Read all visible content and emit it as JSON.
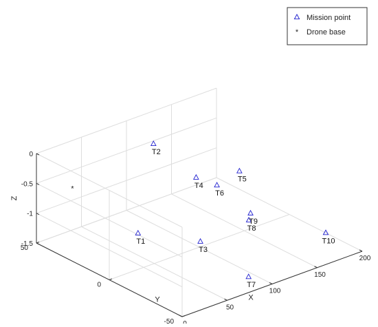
{
  "chart_data": {
    "type": "scatter",
    "projection": "3d",
    "xlabel": "X",
    "ylabel": "Y",
    "zlabel": "Z",
    "xlim": [
      0,
      200
    ],
    "ylim": [
      -50,
      50
    ],
    "zlim": [
      -1.5,
      0
    ],
    "xticks": [
      0,
      50,
      100,
      150,
      200
    ],
    "yticks": [
      -50,
      0,
      50
    ],
    "zticks": [
      -1.5,
      -1,
      -0.5,
      0
    ],
    "grid": true,
    "legend_location": "top-right",
    "series": [
      {
        "name": "Mission point",
        "marker": "triangle",
        "color": "#1f1fcf",
        "points": [
          {
            "label": "T1",
            "x": 40,
            "y": 5,
            "z": -1.0
          },
          {
            "label": "T2",
            "x": 130,
            "y": 50,
            "z": -0.55
          },
          {
            "label": "T3",
            "x": 85,
            "y": -10,
            "z": -1.2
          },
          {
            "label": "T4",
            "x": 145,
            "y": 30,
            "z": -0.95
          },
          {
            "label": "T5",
            "x": 185,
            "y": 25,
            "z": -1.0
          },
          {
            "label": "T6",
            "x": 160,
            "y": 25,
            "z": -1.1
          },
          {
            "label": "T7",
            "x": 90,
            "y": -40,
            "z": -1.45
          },
          {
            "label": "T8",
            "x": 155,
            "y": 0,
            "z": -1.35
          },
          {
            "label": "T9",
            "x": 165,
            "y": 5,
            "z": -1.35
          },
          {
            "label": "T10",
            "x": 200,
            "y": -25,
            "z": -1.5
          }
        ]
      },
      {
        "name": "Drone base",
        "marker": "star",
        "color": "#e02020",
        "points": [
          {
            "label": "",
            "x": 40,
            "y": 50,
            "z": -0.8
          }
        ]
      }
    ]
  }
}
